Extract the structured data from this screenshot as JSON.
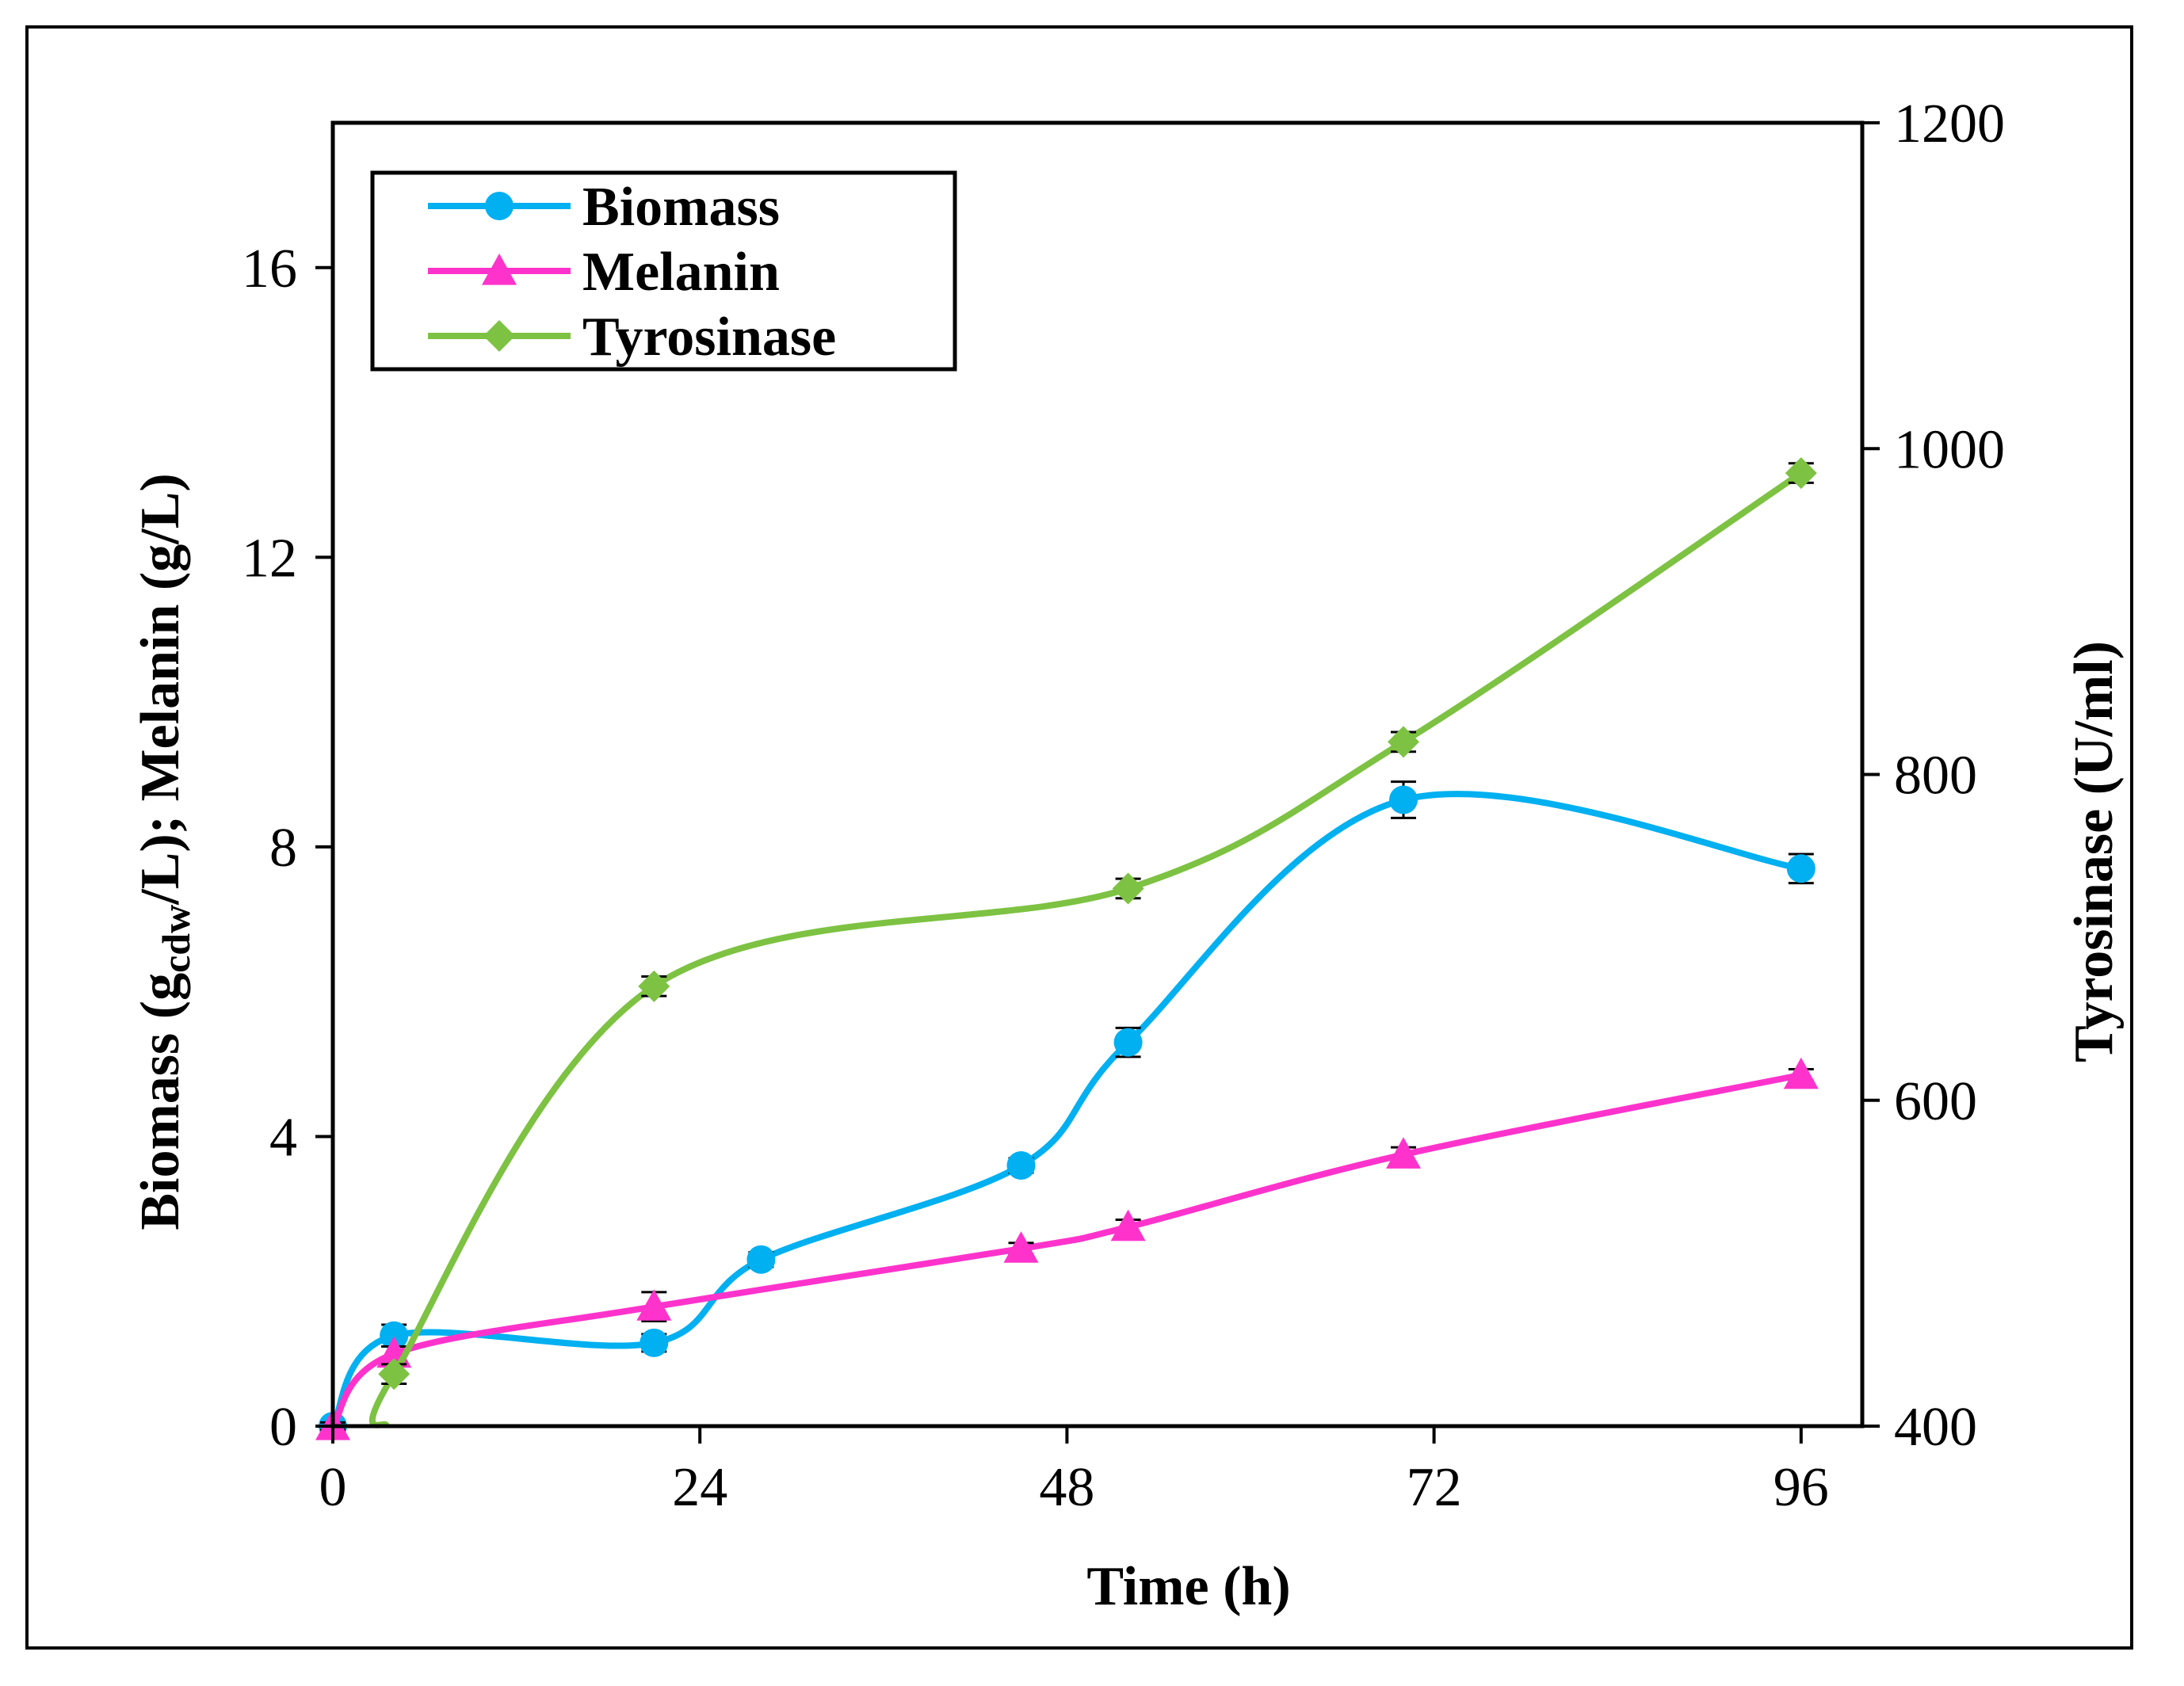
{
  "chart_data": {
    "type": "line",
    "xlabel": "Time (h)",
    "ylabel": {
      "prefix": "Biomass (g",
      "subscript": "cdw",
      "suffix": "/L); Melanin (g/L)"
    },
    "y2label": "Tyrosinase (U/ml)",
    "xlim": [
      0,
      100
    ],
    "ylim": [
      0,
      18
    ],
    "y2lim": [
      400,
      1200
    ],
    "xticks": [
      0,
      24,
      48,
      72,
      96
    ],
    "yticks": [
      0,
      4,
      8,
      12,
      16
    ],
    "y2ticks": [
      400,
      600,
      800,
      1000,
      1200
    ],
    "legend_position": "top-left",
    "series": [
      {
        "name": "Biomass",
        "axis": "left",
        "color": "#00B0F0",
        "marker": "circle",
        "x": [
          0,
          4,
          21,
          28,
          45,
          52,
          70,
          96
        ],
        "values": [
          0,
          1.25,
          1.15,
          2.3,
          3.6,
          5.3,
          8.65,
          7.7
        ],
        "errors": [
          0.05,
          0.15,
          0.12,
          0.1,
          0.1,
          0.2,
          0.25,
          0.2
        ]
      },
      {
        "name": "Melanin",
        "axis": "left",
        "color": "#FF33CC",
        "marker": "triangle",
        "x": [
          0,
          4,
          21,
          45,
          52,
          70,
          96
        ],
        "values": [
          0,
          1.0,
          1.65,
          2.45,
          2.75,
          3.75,
          4.85
        ],
        "errors": [
          0.05,
          0.1,
          0.2,
          0.08,
          0.1,
          0.1,
          0.08
        ]
      },
      {
        "name": "Tyrosinase",
        "axis": "right",
        "color": "#7DC242",
        "marker": "diamond",
        "x": [
          3.5,
          4,
          21,
          52,
          70,
          96
        ],
        "values": [
          400,
          432,
          670,
          730,
          820,
          985
        ],
        "errors": [
          0,
          6,
          6,
          6,
          6,
          6
        ]
      }
    ]
  }
}
